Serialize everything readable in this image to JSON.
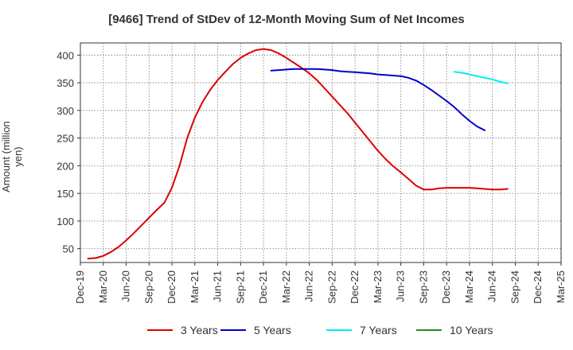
{
  "chart_data": {
    "type": "line",
    "title": "[9466]  Trend of StDev of 12-Month Moving Sum of Net Incomes",
    "ylabel": "Amount (million yen)",
    "xlabel": "",
    "x_ticks": [
      "Dec-19",
      "Mar-20",
      "Jun-20",
      "Sep-20",
      "Dec-20",
      "Mar-21",
      "Jun-21",
      "Sep-21",
      "Dec-21",
      "Mar-22",
      "Jun-22",
      "Sep-22",
      "Dec-22",
      "Mar-23",
      "Jun-23",
      "Sep-23",
      "Dec-23",
      "Mar-24",
      "Jun-24",
      "Sep-24",
      "Dec-24",
      "Mar-25"
    ],
    "y_ticks": [
      50,
      100,
      150,
      200,
      250,
      300,
      350,
      400
    ],
    "ylim": [
      25,
      422
    ],
    "grid": true,
    "legend_position": "bottom",
    "series": [
      {
        "name": "3 Years",
        "color": "#dd0000",
        "start_index": 1,
        "values": [
          32,
          33,
          37,
          44,
          53,
          65,
          78,
          92,
          106,
          120,
          133,
          160,
          200,
          250,
          287,
          315,
          337,
          355,
          370,
          384,
          395,
          403,
          409,
          411,
          409,
          403,
          395,
          386,
          377,
          367,
          355,
          340,
          325,
          310,
          295,
          278,
          261,
          244,
          227,
          212,
          199,
          188,
          176,
          164,
          157,
          157,
          159,
          160,
          160,
          160,
          160,
          159,
          158,
          157,
          157,
          158
        ]
      },
      {
        "name": "5 Years",
        "color": "#0000cc",
        "start_index": 25,
        "values": [
          372,
          373,
          374,
          375,
          375,
          375,
          375,
          374,
          373,
          371,
          370,
          369,
          368,
          367,
          365,
          364,
          363,
          362,
          359,
          354,
          346,
          337,
          327,
          317,
          306,
          293,
          281,
          271,
          264
        ]
      },
      {
        "name": "7 Years",
        "color": "#00eeee",
        "start_index": 49,
        "values": [
          370,
          368,
          365,
          362,
          359,
          356,
          352,
          349
        ]
      },
      {
        "name": "10 Years",
        "color": "#228b22",
        "start_index": 0,
        "values": []
      }
    ]
  }
}
